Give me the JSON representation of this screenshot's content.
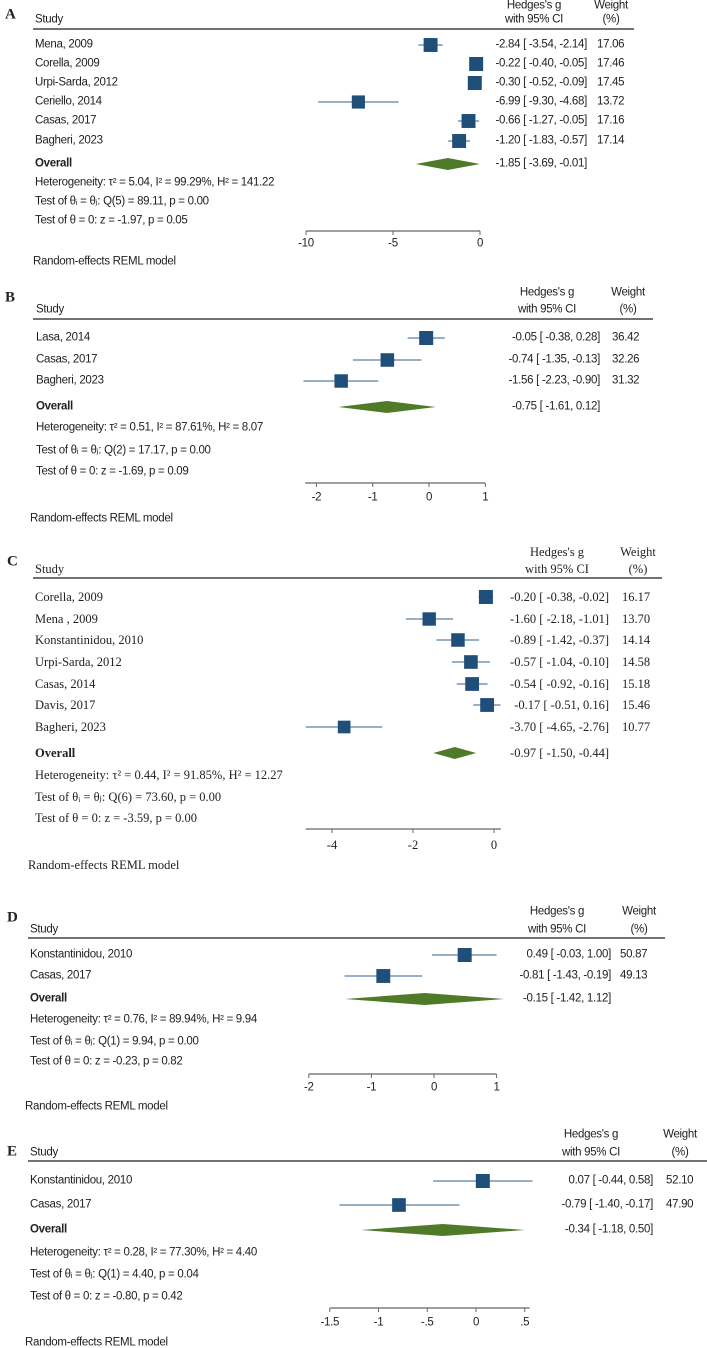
{
  "colors": {
    "marker": "#1f4e79",
    "ci_line": "#5b7fa6",
    "diamond": "#4f7a28",
    "text": "#222222",
    "axis": "#666666"
  },
  "chart_data": [
    {
      "type": "forest",
      "panel_label": "A",
      "col_study": "Study",
      "col_effect": [
        "Hedges's g",
        "with 95% CI"
      ],
      "col_weight": [
        "Weight",
        "(%)"
      ],
      "studies": [
        {
          "name": "Mena, 2009",
          "g": -2.84,
          "lo": -3.54,
          "hi": -2.14,
          "weight": 17.06,
          "effect_text": "-2.84 [ -3.54,  -2.14]",
          "weight_text": "17.06"
        },
        {
          "name": "Corella, 2009",
          "g": -0.22,
          "lo": -0.4,
          "hi": -0.05,
          "weight": 17.46,
          "effect_text": "-0.22 [ -0.40,  -0.05]",
          "weight_text": "17.46"
        },
        {
          "name": "Urpi-Sarda, 2012",
          "g": -0.3,
          "lo": -0.52,
          "hi": -0.09,
          "weight": 17.45,
          "effect_text": "-0.30 [ -0.52,  -0.09]",
          "weight_text": "17.45"
        },
        {
          "name": "Ceriello, 2014",
          "g": -6.99,
          "lo": -9.3,
          "hi": -4.68,
          "weight": 13.72,
          "effect_text": "-6.99 [ -9.30,  -4.68]",
          "weight_text": "13.72"
        },
        {
          "name": "Casas, 2017",
          "g": -0.66,
          "lo": -1.27,
          "hi": -0.05,
          "weight": 17.16,
          "effect_text": "-0.66 [ -1.27,  -0.05]",
          "weight_text": "17.16"
        },
        {
          "name": "Bagheri, 2023",
          "g": -1.2,
          "lo": -1.83,
          "hi": -0.57,
          "weight": 17.14,
          "effect_text": "-1.20 [ -1.83,  -0.57]",
          "weight_text": "17.14"
        }
      ],
      "overall": {
        "name": "Overall",
        "g": -1.85,
        "lo": -3.69,
        "hi": -0.01,
        "effect_text": "-1.85 [ -3.69,  -0.01]"
      },
      "stats": [
        "Heterogeneity: τ² = 5.04, I² = 99.29%, H² = 141.22",
        "Test of θᵢ = θⱼ: Q(5) = 89.11, p = 0.00",
        "Test of θ = 0: z = -1.97, p = 0.05"
      ],
      "xticks": [
        -10,
        -5,
        0
      ],
      "xtick_labels": [
        "-10",
        "-5",
        "0"
      ],
      "xlim": [
        -10,
        0
      ],
      "model_note": "Random-effects REML model"
    },
    {
      "type": "forest",
      "panel_label": "B",
      "col_study": "Study",
      "col_effect": [
        "Hedges's g",
        "with 95% CI"
      ],
      "col_weight": [
        "Weight",
        "(%)"
      ],
      "studies": [
        {
          "name": "Lasa, 2014",
          "g": -0.05,
          "lo": -0.38,
          "hi": 0.28,
          "weight": 36.42,
          "effect_text": "-0.05 [ -0.38,   0.28]",
          "weight_text": "36.42"
        },
        {
          "name": "Casas, 2017",
          "g": -0.74,
          "lo": -1.35,
          "hi": -0.13,
          "weight": 32.26,
          "effect_text": "-0.74 [ -1.35,  -0.13]",
          "weight_text": "32.26"
        },
        {
          "name": "Bagheri, 2023",
          "g": -1.56,
          "lo": -2.23,
          "hi": -0.9,
          "weight": 31.32,
          "effect_text": "-1.56 [ -2.23,  -0.90]",
          "weight_text": "31.32"
        }
      ],
      "overall": {
        "name": "Overall",
        "g": -0.75,
        "lo": -1.61,
        "hi": 0.12,
        "effect_text": "-0.75 [ -1.61,   0.12]"
      },
      "stats": [
        "Heterogeneity: τ² = 0.51, I² = 87.61%, H² = 8.07",
        "Test of θᵢ = θⱼ: Q(2) = 17.17, p = 0.00",
        "Test of θ = 0: z = -1.69, p = 0.09"
      ],
      "xticks": [
        -2,
        -1,
        0,
        1
      ],
      "xtick_labels": [
        "-2",
        "-1",
        "0",
        "1"
      ],
      "xlim": [
        -2.2,
        1
      ],
      "model_note": "Random-effects REML model"
    },
    {
      "type": "forest",
      "panel_label": "C",
      "col_study": "Study",
      "col_effect": [
        "Hedges's g",
        "with 95% CI"
      ],
      "col_weight": [
        "Weight",
        "(%)"
      ],
      "studies": [
        {
          "name": "Corella, 2009",
          "g": -0.2,
          "lo": -0.38,
          "hi": -0.02,
          "weight": 16.17,
          "effect_text": "-0.20 [ -0.38,  -0.02]",
          "weight_text": "16.17"
        },
        {
          "name": "Mena , 2009",
          "g": -1.6,
          "lo": -2.18,
          "hi": -1.01,
          "weight": 13.7,
          "effect_text": "-1.60 [ -2.18,  -1.01]",
          "weight_text": "13.70"
        },
        {
          "name": "Konstantinidou, 2010",
          "g": -0.89,
          "lo": -1.42,
          "hi": -0.37,
          "weight": 14.14,
          "effect_text": "-0.89 [ -1.42,  -0.37]",
          "weight_text": "14.14"
        },
        {
          "name": "Urpi-Sarda, 2012",
          "g": -0.57,
          "lo": -1.04,
          "hi": -0.1,
          "weight": 14.58,
          "effect_text": "-0.57 [ -1.04,  -0.10]",
          "weight_text": "14.58"
        },
        {
          "name": "Casas, 2014",
          "g": -0.54,
          "lo": -0.92,
          "hi": -0.16,
          "weight": 15.18,
          "effect_text": "-0.54 [ -0.92,  -0.16]",
          "weight_text": "15.18"
        },
        {
          "name": "Davis, 2017",
          "g": -0.17,
          "lo": -0.51,
          "hi": 0.16,
          "weight": 15.46,
          "effect_text": "-0.17 [ -0.51,   0.16]",
          "weight_text": "15.46"
        },
        {
          "name": "Bagheri, 2023",
          "g": -3.7,
          "lo": -4.65,
          "hi": -2.76,
          "weight": 10.77,
          "effect_text": "-3.70 [ -4.65,  -2.76]",
          "weight_text": "10.77"
        }
      ],
      "overall": {
        "name": "Overall",
        "g": -0.97,
        "lo": -1.5,
        "hi": -0.44,
        "effect_text": "-0.97 [ -1.50,  -0.44]"
      },
      "stats": [
        "Heterogeneity: τ² = 0.44, I² = 91.85%, H² = 12.27",
        "Test of θᵢ = θⱼ: Q(6) = 73.60, p = 0.00",
        "Test of θ = 0: z = -3.59, p = 0.00"
      ],
      "xticks": [
        -4,
        -2,
        0
      ],
      "xtick_labels": [
        "-4",
        "-2",
        "0"
      ],
      "xlim": [
        -4.65,
        0.17
      ],
      "model_note": "Random-effects REML model"
    },
    {
      "type": "forest",
      "panel_label": "D",
      "col_study": "Study",
      "col_effect": [
        "Hedges's g",
        "with 95% CI"
      ],
      "col_weight": [
        "Weight",
        "(%)"
      ],
      "studies": [
        {
          "name": "Konstantinidou, 2010",
          "g": 0.49,
          "lo": -0.03,
          "hi": 1.0,
          "weight": 50.87,
          "effect_text": "0.49 [ -0.03,   1.00]",
          "weight_text": "50.87"
        },
        {
          "name": "Casas, 2017",
          "g": -0.81,
          "lo": -1.43,
          "hi": -0.19,
          "weight": 49.13,
          "effect_text": "-0.81 [ -1.43,  -0.19]",
          "weight_text": "49.13"
        }
      ],
      "overall": {
        "name": "Overall",
        "g": -0.15,
        "lo": -1.42,
        "hi": 1.12,
        "effect_text": "-0.15 [ -1.42,   1.12]"
      },
      "stats": [
        "Heterogeneity: τ² = 0.76, I² = 89.94%, H² = 9.94",
        "Test of θᵢ = θⱼ: Q(1) = 9.94, p = 0.00",
        "Test of θ = 0: z = -0.23, p = 0.82"
      ],
      "xticks": [
        -2,
        -1,
        0,
        1
      ],
      "xtick_labels": [
        "-2",
        "-1",
        "0",
        "1"
      ],
      "xlim": [
        -2,
        1
      ],
      "model_note": "Random-effects REML model"
    },
    {
      "type": "forest",
      "panel_label": "E",
      "col_study": "Study",
      "col_effect": [
        "Hedges's g",
        "with 95% CI"
      ],
      "col_weight": [
        "Weight",
        "(%)"
      ],
      "studies": [
        {
          "name": "Konstantinidou, 2010",
          "g": 0.07,
          "lo": -0.44,
          "hi": 0.58,
          "weight": 52.1,
          "effect_text": "0.07 [ -0.44,   0.58]",
          "weight_text": "52.10"
        },
        {
          "name": "Casas, 2017",
          "g": -0.79,
          "lo": -1.4,
          "hi": -0.17,
          "weight": 47.9,
          "effect_text": "-0.79 [ -1.40,  -0.17]",
          "weight_text": "47.90"
        }
      ],
      "overall": {
        "name": "Overall",
        "g": -0.34,
        "lo": -1.18,
        "hi": 0.5,
        "effect_text": "-0.34 [ -1.18,   0.50]"
      },
      "stats": [
        "Heterogeneity: τ² = 0.28, I² = 77.30%, H² = 4.40",
        "Test of θᵢ = θⱼ: Q(1) = 4.40, p = 0.04",
        "Test of θ = 0: z = -0.80, p = 0.42"
      ],
      "xticks": [
        -1.5,
        -1,
        -0.5,
        0,
        0.5
      ],
      "xtick_labels": [
        "-1.5",
        "-1",
        "-.5",
        "0",
        ".5"
      ],
      "xlim": [
        -1.5,
        0.55
      ],
      "model_note": "Random-effects REML model"
    }
  ]
}
